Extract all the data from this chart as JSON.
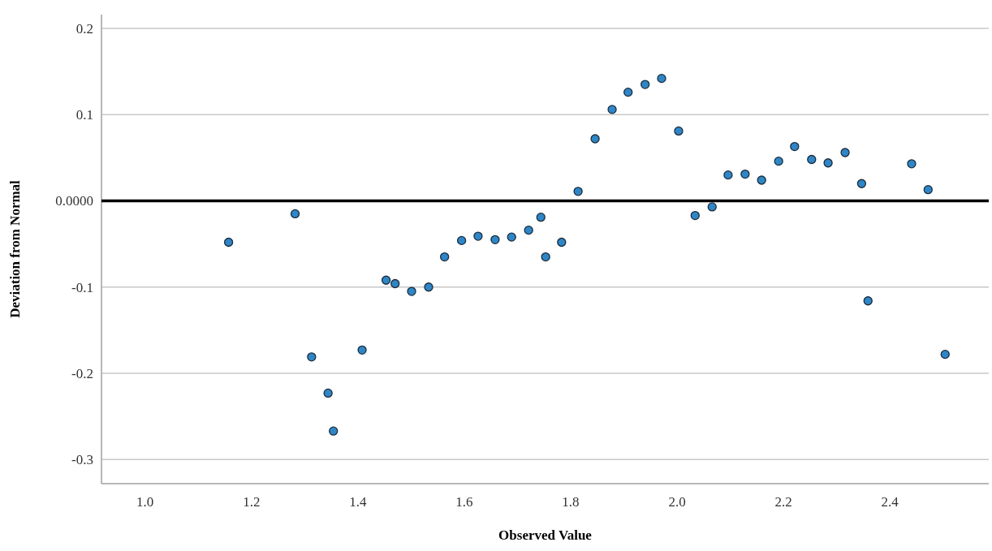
{
  "chart_data": {
    "type": "scatter",
    "xlabel": "Observed Value",
    "ylabel": "Deviation from Normal",
    "x": [
      1.157,
      1.282,
      1.313,
      1.344,
      1.354,
      1.408,
      1.453,
      1.47,
      1.501,
      1.533,
      1.563,
      1.595,
      1.626,
      1.658,
      1.689,
      1.721,
      1.744,
      1.753,
      1.783,
      1.814,
      1.846,
      1.878,
      1.908,
      1.94,
      1.971,
      2.003,
      2.034,
      2.066,
      2.096,
      2.128,
      2.159,
      2.191,
      2.221,
      2.253,
      2.284,
      2.316,
      2.347,
      2.359,
      2.441,
      2.472,
      2.504
    ],
    "series": [
      {
        "color": "#2f86c6",
        "values": [
          -0.048,
          -0.015,
          -0.181,
          -0.223,
          -0.267,
          -0.173,
          -0.092,
          -0.096,
          -0.105,
          -0.1,
          -0.065,
          -0.046,
          -0.041,
          -0.045,
          -0.042,
          -0.034,
          -0.019,
          -0.065,
          -0.048,
          0.011,
          0.072,
          0.106,
          0.126,
          0.135,
          0.142,
          0.081,
          -0.017,
          -0.007,
          0.03,
          0.031,
          0.024,
          0.046,
          0.063,
          0.048,
          0.044,
          0.056,
          0.02,
          -0.116,
          0.043,
          0.013,
          -0.178
        ]
      }
    ],
    "xlim": [
      0.918,
      2.586
    ],
    "xticks": [
      {
        "value": 1,
        "label": "1.0"
      },
      1.2,
      1.4,
      1.6,
      1.8,
      {
        "value": 2,
        "label": "2.0"
      },
      2.2,
      2.4
    ],
    "ylim": [
      -0.328,
      0.216
    ],
    "yticks": [
      0.2,
      0.1,
      {
        "value": 0,
        "label": "0.0000"
      },
      -0.1,
      -0.2,
      -0.3
    ],
    "grid": "y",
    "marker": "circle",
    "ref_lines": [
      {
        "axis": "y",
        "value": 0,
        "color": "#000000"
      }
    ]
  }
}
